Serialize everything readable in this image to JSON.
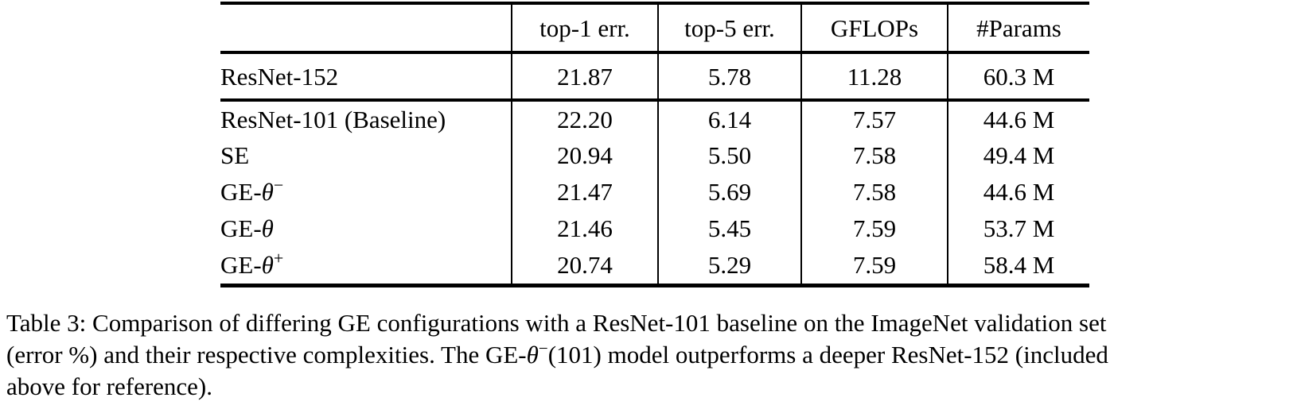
{
  "table": {
    "headers": [
      "",
      "top-1 err.",
      "top-5 err.",
      "GFLOPs",
      "#Params"
    ],
    "section_reference": [
      {
        "model_pre": "ResNet-152",
        "model_theta": "",
        "model_sup": "",
        "top1": "21.87",
        "top5": "5.78",
        "gflops": "11.28",
        "params": "60.3 M"
      }
    ],
    "section_models": [
      {
        "model_pre": "ResNet-101 (Baseline)",
        "model_theta": "",
        "model_sup": "",
        "top1": "22.20",
        "top5": "6.14",
        "gflops": "7.57",
        "params": "44.6 M"
      },
      {
        "model_pre": "SE",
        "model_theta": "",
        "model_sup": "",
        "top1": "20.94",
        "top5": "5.50",
        "gflops": "7.58",
        "params": "49.4 M"
      },
      {
        "model_pre": "GE-",
        "model_theta": "θ",
        "model_sup": "−",
        "top1": "21.47",
        "top5": "5.69",
        "gflops": "7.58",
        "params": "44.6 M"
      },
      {
        "model_pre": "GE-",
        "model_theta": "θ",
        "model_sup": "",
        "top1": "21.46",
        "top5": "5.45",
        "gflops": "7.59",
        "params": "53.7 M"
      },
      {
        "model_pre": "GE-",
        "model_theta": "θ",
        "model_sup": "+",
        "top1": "20.74",
        "top5": "5.29",
        "gflops": "7.59",
        "params": "58.4 M"
      }
    ]
  },
  "caption": {
    "line1": "Table 3: Comparison of differing GE configurations with a ResNet-101 baseline on the ImageNet validation set",
    "line2_pre": "(error %) and their respective complexities. The GE-",
    "line2_theta": "θ",
    "line2_sup": "−",
    "line2_post": "(101) model outperforms a deeper ResNet-152 (included",
    "line3": "above for reference)."
  }
}
